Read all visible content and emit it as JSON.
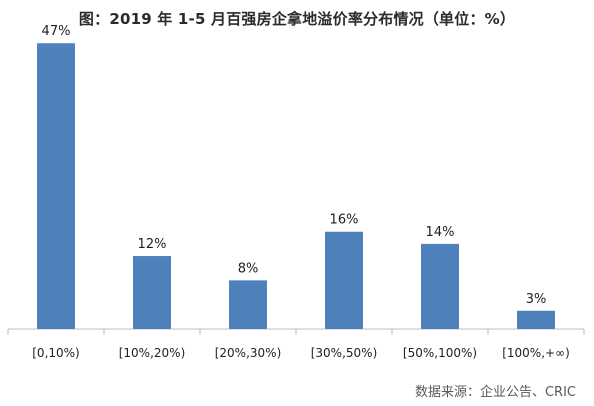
{
  "chart_data": {
    "type": "bar",
    "title": "图：2019 年 1-5 月百强房企拿地溢价率分布情况（单位：%）",
    "categories": [
      "[0,10%)",
      "[10%,20%)",
      "[20%,30%)",
      "[30%,50%)",
      "[50%,100%)",
      "[100%,+∞)"
    ],
    "values": [
      47,
      12,
      8,
      16,
      14,
      3
    ],
    "data_labels": [
      "47%",
      "12%",
      "8%",
      "16%",
      "14%",
      "3%"
    ],
    "xlabel": "",
    "ylabel": "",
    "ylim": [
      0,
      50
    ],
    "grid": false,
    "legend": "none",
    "bar_color": "#4f81bd",
    "axis_color": "#bfbfbf"
  },
  "source": "数据来源：企业公告、CRIC"
}
